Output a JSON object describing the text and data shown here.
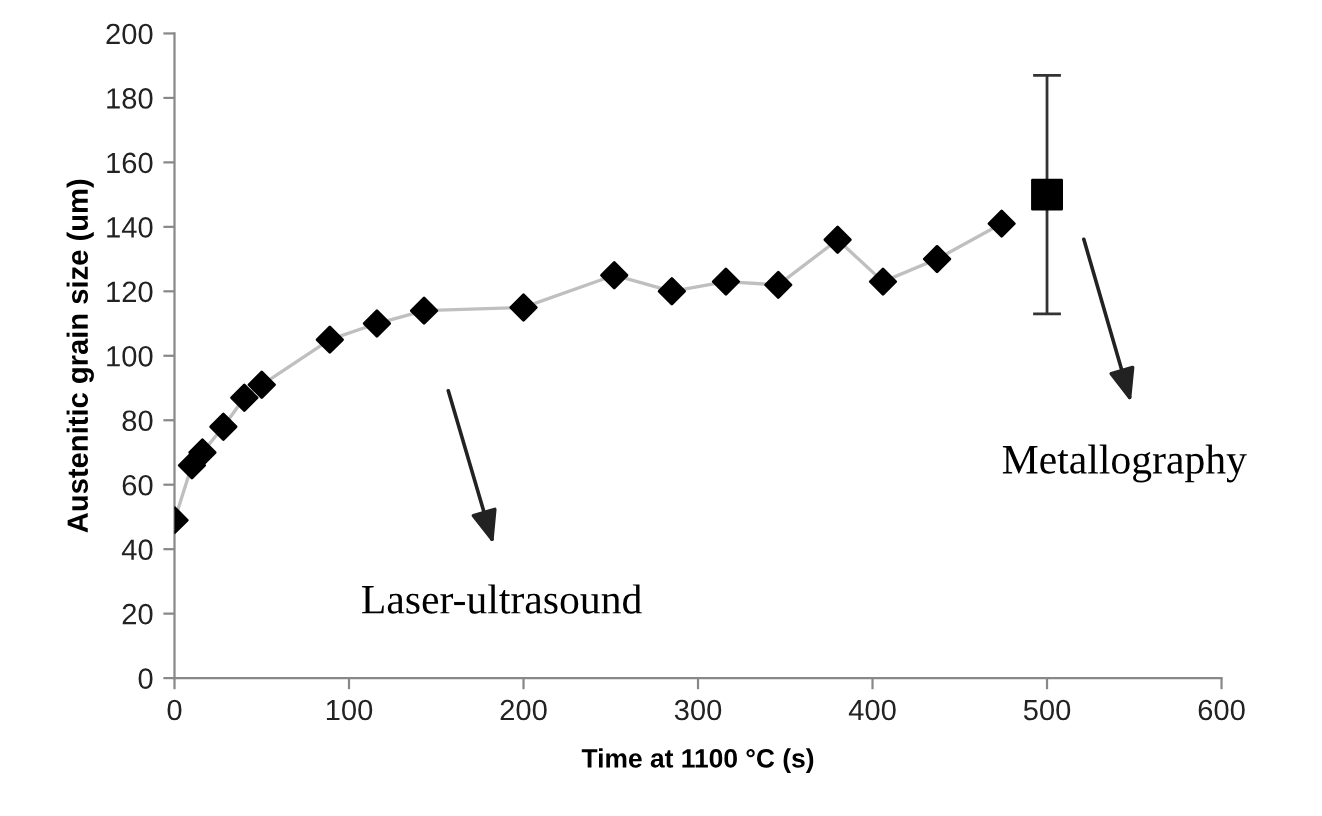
{
  "chart_data": {
    "type": "line",
    "xlabel": "Time at 1100 °C (s)",
    "ylabel": "Austenitic grain size (um)",
    "xlim": [
      0,
      600
    ],
    "xticks": [
      0,
      100,
      200,
      300,
      400,
      500,
      600
    ],
    "ylim": [
      0,
      200
    ],
    "yticks": [
      0,
      20,
      40,
      60,
      80,
      100,
      120,
      140,
      160,
      180,
      200
    ],
    "grid": false,
    "series": [
      {
        "color": "#000000",
        "marker": "diamond",
        "x": [
          0,
          10,
          16,
          28,
          40,
          50,
          89,
          116,
          143,
          200,
          252,
          285,
          316,
          346,
          380,
          406,
          437,
          474
        ],
        "values": [
          49,
          66,
          70,
          78,
          87,
          91,
          105,
          110,
          114,
          115,
          125,
          120,
          123,
          122,
          136,
          123,
          130,
          141
        ]
      },
      {
        "type": "scatter",
        "color": "#000000",
        "marker": "square",
        "x": [
          500
        ],
        "values": [
          150
        ],
        "errors": [
          [
            113,
            187
          ]
        ]
      }
    ],
    "annotations": [
      "Laser-ultrasound",
      "Metallography"
    ]
  }
}
